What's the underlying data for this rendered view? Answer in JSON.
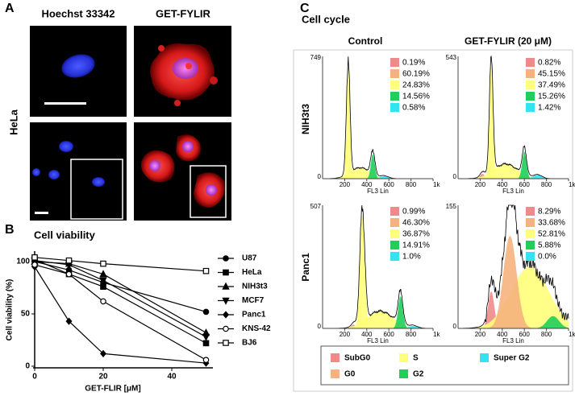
{
  "panel_a": {
    "label": "A",
    "columns": [
      "Hoechst 33342",
      "GET-FYLIR"
    ],
    "row_label": "HeLa"
  },
  "panel_b": {
    "label": "B"
  },
  "chart_data": {
    "type": "line",
    "title": "Cell viability",
    "x_label": "GET-FLIR [μM]",
    "y_label": "Cell viability (%)",
    "x": [
      0,
      10,
      20,
      50
    ],
    "xlim": [
      0,
      52
    ],
    "xticks": [
      0,
      20,
      40
    ],
    "ylim": [
      0,
      110
    ],
    "yticks": [
      0,
      50,
      100
    ],
    "series": [
      {
        "name": "U87",
        "color": "#000000",
        "marker": "circle",
        "filled": true,
        "values": [
          100,
          92,
          80,
          52
        ]
      },
      {
        "name": "HeLa",
        "color": "#000000",
        "marker": "square",
        "filled": true,
        "values": [
          102,
          88,
          76,
          22
        ]
      },
      {
        "name": "NIH3t3",
        "color": "#000000",
        "marker": "triangle",
        "filled": true,
        "values": [
          100,
          98,
          88,
          32
        ]
      },
      {
        "name": "MCF7",
        "color": "#000000",
        "marker": "triangle-down",
        "filled": true,
        "values": [
          101,
          97,
          82,
          28
        ]
      },
      {
        "name": "Panc1",
        "color": "#000000",
        "marker": "diamond",
        "filled": true,
        "values": [
          95,
          43,
          12,
          3
        ]
      },
      {
        "name": "KNS-42",
        "color": "#000000",
        "marker": "circle",
        "filled": false,
        "values": [
          97,
          88,
          62,
          6
        ]
      },
      {
        "name": "BJ6",
        "color": "#000000",
        "marker": "square",
        "filled": false,
        "values": [
          104,
          101,
          98,
          91
        ]
      }
    ]
  },
  "panel_c": {
    "label": "C",
    "title": "Cell cycle",
    "columns": [
      "Control",
      "GET-FYLIR (20 μM)"
    ],
    "rows": [
      "NIH3t3",
      "Panc1"
    ],
    "plots": [
      {
        "y_max": "749",
        "y_min": "0",
        "x_ticks": [
          "200",
          "400",
          "600",
          "800",
          "1k"
        ],
        "x_label": "FL3 Lin",
        "percentages": [
          "0.19%",
          "60.19%",
          "24.83%",
          "14.56%",
          "0.58%"
        ]
      },
      {
        "y_max": "543",
        "y_min": "0",
        "x_ticks": [
          "200",
          "400",
          "600",
          "800",
          "1k"
        ],
        "x_label": "FL3 Lin",
        "percentages": [
          "0.82%",
          "45.15%",
          "37.49%",
          "15.26%",
          "1.42%"
        ]
      },
      {
        "y_max": "507",
        "y_min": "0",
        "x_ticks": [
          "200",
          "400",
          "600",
          "800",
          "1k"
        ],
        "x_label": "FL3 Lin",
        "percentages": [
          "0.99%",
          "46.30%",
          "36.87%",
          "14.91%",
          "1.0%"
        ]
      },
      {
        "y_max": "155",
        "y_min": "0",
        "x_ticks": [
          "200",
          "400",
          "600",
          "800",
          "1k"
        ],
        "x_label": "FL3 Lin",
        "percentages": [
          "8.29%",
          "33.68%",
          "52.81%",
          "5.88%",
          "0.0%"
        ]
      }
    ],
    "legend": [
      {
        "name": "SubG0",
        "color": "#f08a8a"
      },
      {
        "name": "G0",
        "color": "#f5b27e"
      },
      {
        "name": "S",
        "color": "#ffff7a"
      },
      {
        "name": "G2",
        "color": "#1fcf5a"
      },
      {
        "name": "Super G2",
        "color": "#33e3ef"
      }
    ]
  }
}
